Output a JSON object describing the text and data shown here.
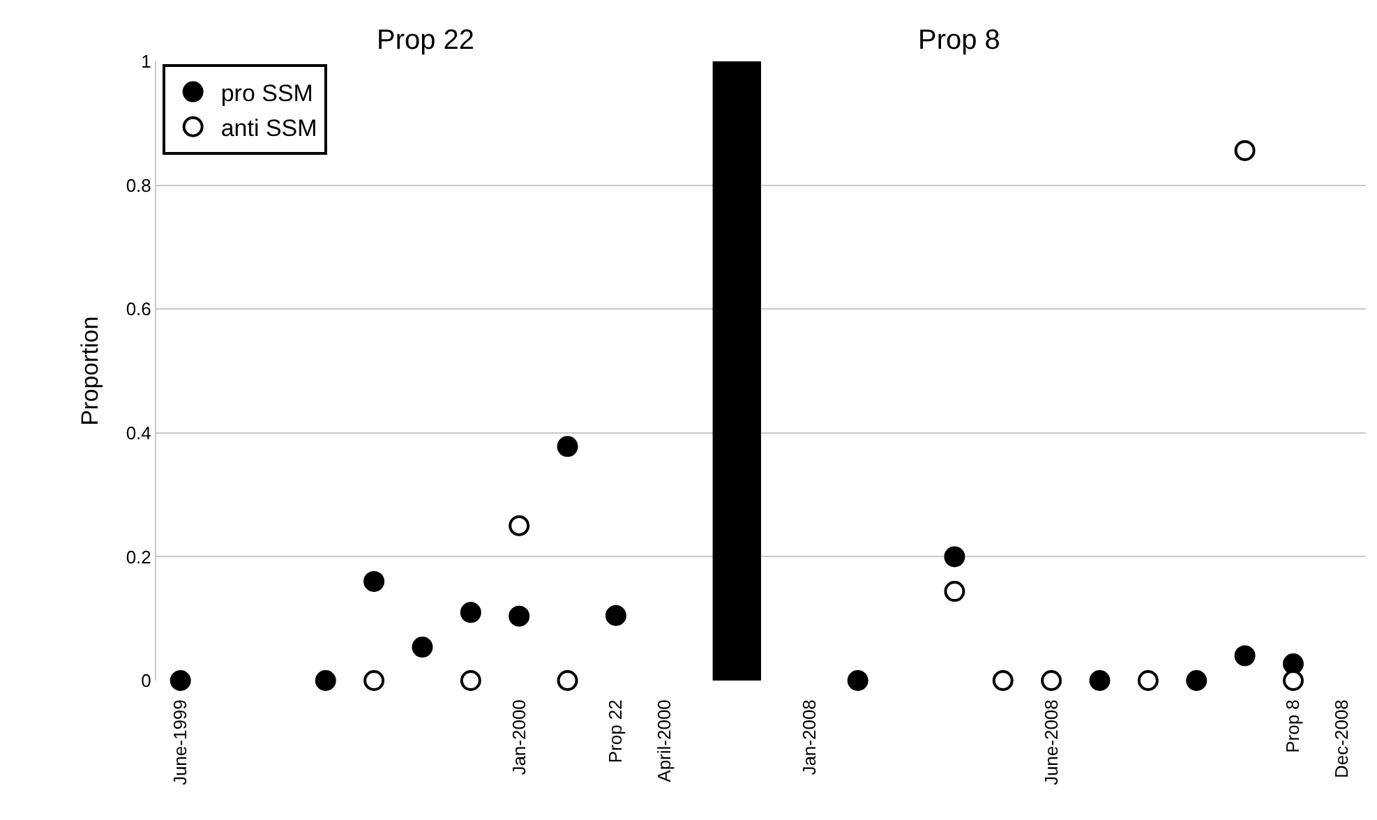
{
  "chart_data": {
    "type": "scatter",
    "ylabel": "Proportion",
    "annotations": [
      "Prop 22",
      "Prop 8"
    ],
    "categories": [
      "June-1999",
      null,
      null,
      null,
      null,
      null,
      null,
      null,
      null,
      null,
      null,
      null,
      null,
      null,
      "Jan-2000",
      null,
      null,
      null,
      "Prop 22",
      null,
      "April-2000",
      null,
      null,
      null,
      null,
      null,
      "Jan-2008",
      null,
      null,
      null,
      null,
      null,
      null,
      null,
      null,
      null,
      "June-2008",
      null,
      null,
      null,
      null,
      null,
      null,
      null,
      null,
      null,
      "Prop 8",
      null,
      "Dec-2008"
    ],
    "series": [
      {
        "type": "bar",
        "color": "#000000",
        "values": [
          null,
          null,
          null,
          null,
          null,
          null,
          null,
          null,
          null,
          null,
          null,
          null,
          null,
          null,
          null,
          null,
          null,
          null,
          null,
          null,
          null,
          null,
          null,
          1,
          null,
          null,
          null,
          null,
          null,
          null,
          null,
          null,
          null,
          null,
          null,
          null,
          null,
          null,
          null,
          null,
          null,
          null,
          null,
          null,
          null,
          null,
          null,
          null,
          null
        ]
      },
      {
        "name": "pro SSM",
        "color": "#000000",
        "values": [
          0,
          null,
          null,
          null,
          null,
          null,
          0,
          null,
          0.16,
          null,
          0.054,
          null,
          0.11,
          null,
          0.104,
          null,
          0.378,
          null,
          0.105,
          null,
          null,
          null,
          null,
          null,
          null,
          null,
          null,
          null,
          0,
          null,
          null,
          null,
          0.2,
          null,
          null,
          null,
          null,
          null,
          0,
          null,
          null,
          null,
          0,
          null,
          0.04,
          null,
          0.027,
          null,
          null
        ]
      },
      {
        "name": "anti SSM",
        "color": "#ffffff",
        "values": [
          null,
          null,
          null,
          null,
          null,
          null,
          null,
          null,
          0,
          null,
          null,
          null,
          0,
          null,
          0.25,
          null,
          0,
          null,
          null,
          null,
          null,
          null,
          null,
          null,
          null,
          null,
          null,
          null,
          null,
          null,
          null,
          null,
          0.144,
          null,
          0,
          null,
          0,
          null,
          null,
          null,
          0,
          null,
          null,
          null,
          0.856,
          null,
          0,
          null,
          null
        ]
      }
    ],
    "ylim": [
      0,
      1
    ],
    "yticks": [
      0,
      0.2,
      0.4,
      0.6,
      0.8,
      1
    ],
    "grid": "y",
    "legend": "top left",
    "marker": "circle"
  }
}
